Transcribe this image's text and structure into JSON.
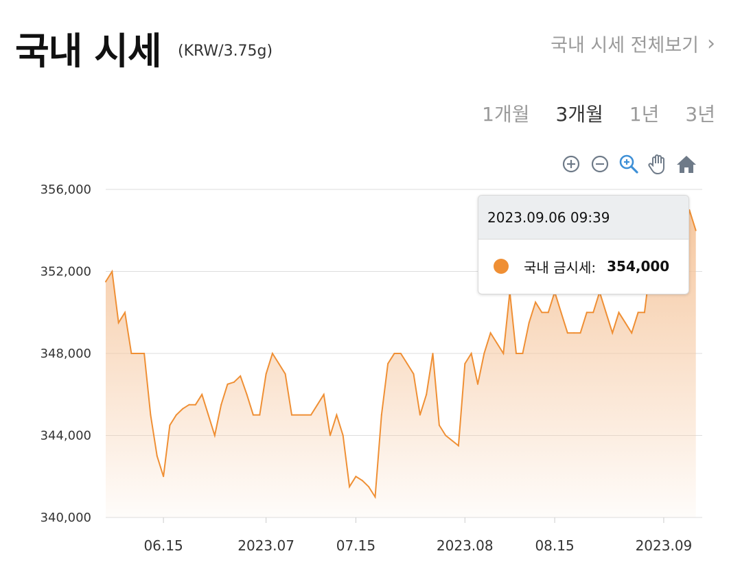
{
  "header": {
    "title": "국내 시세",
    "unit": "(KRW/3.75g)",
    "view_all": "국내 시세 전체보기"
  },
  "tabs": [
    {
      "label": "1개월",
      "active": false
    },
    {
      "label": "3개월",
      "active": true
    },
    {
      "label": "1년",
      "active": false
    },
    {
      "label": "3년",
      "active": false
    }
  ],
  "toolbar": [
    "zoom-in-icon",
    "zoom-out-icon",
    "zoom-select-icon",
    "pan-hand-icon",
    "home-reset-icon"
  ],
  "tooltip": {
    "datetime": "2023.09.06 09:39",
    "series_label": "국내 금시세:",
    "value": "354,000"
  },
  "colors": {
    "line": "#ef8f34",
    "fill_top": "#f5c49a",
    "grid": "#dddddd",
    "accent": "#3d8fd6"
  },
  "chart_data": {
    "type": "area",
    "series_name": "국내 금시세",
    "x_start": "2023-06-06",
    "x_end": "2023-09-07",
    "ylim": [
      340000,
      356000
    ],
    "y_ticks": [
      "356,000",
      "352,000",
      "348,000",
      "344,000",
      "340,000"
    ],
    "y_tick_values": [
      356000,
      352000,
      348000,
      344000,
      340000
    ],
    "x_ticks": [
      {
        "label": "06.15",
        "date": "2023-06-15"
      },
      {
        "label": "2023.07",
        "date": "2023-07-01"
      },
      {
        "label": "07.15",
        "date": "2023-07-15"
      },
      {
        "label": "2023.08",
        "date": "2023-08-01"
      },
      {
        "label": "08.15",
        "date": "2023-08-15"
      },
      {
        "label": "2023.09",
        "date": "2023-09-01"
      }
    ],
    "grid": true,
    "points": [
      [
        "2023-06-06",
        351500
      ],
      [
        "2023-06-07",
        352000
      ],
      [
        "2023-06-08",
        349500
      ],
      [
        "2023-06-09",
        350000
      ],
      [
        "2023-06-10",
        348000
      ],
      [
        "2023-06-12",
        348000
      ],
      [
        "2023-06-13",
        345000
      ],
      [
        "2023-06-14",
        343000
      ],
      [
        "2023-06-15",
        342000
      ],
      [
        "2023-06-16",
        344500
      ],
      [
        "2023-06-17",
        345000
      ],
      [
        "2023-06-18",
        345300
      ],
      [
        "2023-06-19",
        345500
      ],
      [
        "2023-06-20",
        345500
      ],
      [
        "2023-06-21",
        346000
      ],
      [
        "2023-06-22",
        345000
      ],
      [
        "2023-06-23",
        344000
      ],
      [
        "2023-06-24",
        345500
      ],
      [
        "2023-06-25",
        346500
      ],
      [
        "2023-06-26",
        346600
      ],
      [
        "2023-06-27",
        346900
      ],
      [
        "2023-06-28",
        346000
      ],
      [
        "2023-06-29",
        345000
      ],
      [
        "2023-06-30",
        345000
      ],
      [
        "2023-07-01",
        347000
      ],
      [
        "2023-07-02",
        348000
      ],
      [
        "2023-07-03",
        347500
      ],
      [
        "2023-07-04",
        347000
      ],
      [
        "2023-07-05",
        345000
      ],
      [
        "2023-07-08",
        345000
      ],
      [
        "2023-07-09",
        345500
      ],
      [
        "2023-07-10",
        346000
      ],
      [
        "2023-07-11",
        344000
      ],
      [
        "2023-07-12",
        345000
      ],
      [
        "2023-07-13",
        344000
      ],
      [
        "2023-07-14",
        341500
      ],
      [
        "2023-07-15",
        342000
      ],
      [
        "2023-07-16",
        341800
      ],
      [
        "2023-07-17",
        341500
      ],
      [
        "2023-07-18",
        341000
      ],
      [
        "2023-07-19",
        345000
      ],
      [
        "2023-07-20",
        347500
      ],
      [
        "2023-07-21",
        348000
      ],
      [
        "2023-07-22",
        348000
      ],
      [
        "2023-07-23",
        347500
      ],
      [
        "2023-07-24",
        347000
      ],
      [
        "2023-07-25",
        345000
      ],
      [
        "2023-07-26",
        346000
      ],
      [
        "2023-07-27",
        348000
      ],
      [
        "2023-07-28",
        344500
      ],
      [
        "2023-07-29",
        344000
      ],
      [
        "2023-07-31",
        343500
      ],
      [
        "2023-08-01",
        347500
      ],
      [
        "2023-08-02",
        348000
      ],
      [
        "2023-08-03",
        346500
      ],
      [
        "2023-08-04",
        348000
      ],
      [
        "2023-08-05",
        349000
      ],
      [
        "2023-08-06",
        348500
      ],
      [
        "2023-08-07",
        348000
      ],
      [
        "2023-08-08",
        351000
      ],
      [
        "2023-08-09",
        348000
      ],
      [
        "2023-08-10",
        348000
      ],
      [
        "2023-08-11",
        349500
      ],
      [
        "2023-08-12",
        350500
      ],
      [
        "2023-08-13",
        350000
      ],
      [
        "2023-08-14",
        350000
      ],
      [
        "2023-08-15",
        351000
      ],
      [
        "2023-08-16",
        350000
      ],
      [
        "2023-08-17",
        349000
      ],
      [
        "2023-08-18",
        349000
      ],
      [
        "2023-08-19",
        349000
      ],
      [
        "2023-08-20",
        350000
      ],
      [
        "2023-08-21",
        350000
      ],
      [
        "2023-08-22",
        351000
      ],
      [
        "2023-08-23",
        350000
      ],
      [
        "2023-08-24",
        349000
      ],
      [
        "2023-08-25",
        350000
      ],
      [
        "2023-08-26",
        349500
      ],
      [
        "2023-08-27",
        349000
      ],
      [
        "2023-08-28",
        350000
      ],
      [
        "2023-08-29",
        350000
      ],
      [
        "2023-08-30",
        352500
      ],
      [
        "2023-08-31",
        353000
      ],
      [
        "2023-09-01",
        353000
      ],
      [
        "2023-09-02",
        353000
      ],
      [
        "2023-09-03",
        353000
      ],
      [
        "2023-09-04",
        353000
      ],
      [
        "2023-09-05",
        355000
      ],
      [
        "2023-09-06",
        354000
      ]
    ]
  }
}
